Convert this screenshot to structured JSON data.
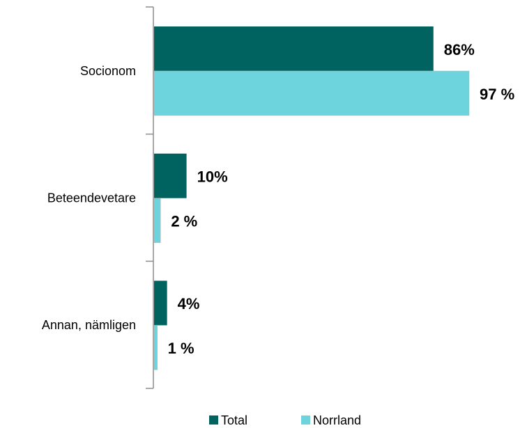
{
  "chart_data": {
    "type": "bar",
    "orientation": "horizontal",
    "categories": [
      "Socionom",
      "Beteendevetare",
      "Annan, nämligen"
    ],
    "series": [
      {
        "name": "Total",
        "color": "#00635f",
        "values": [
          86,
          10,
          4
        ],
        "value_labels": [
          "86%",
          "10%",
          "4%"
        ]
      },
      {
        "name": "Norrland",
        "color": "#6dd4dd",
        "values": [
          97,
          2,
          1
        ],
        "value_labels": [
          "97 %",
          "2 %",
          "1 %"
        ]
      }
    ],
    "legend": "bottom"
  }
}
